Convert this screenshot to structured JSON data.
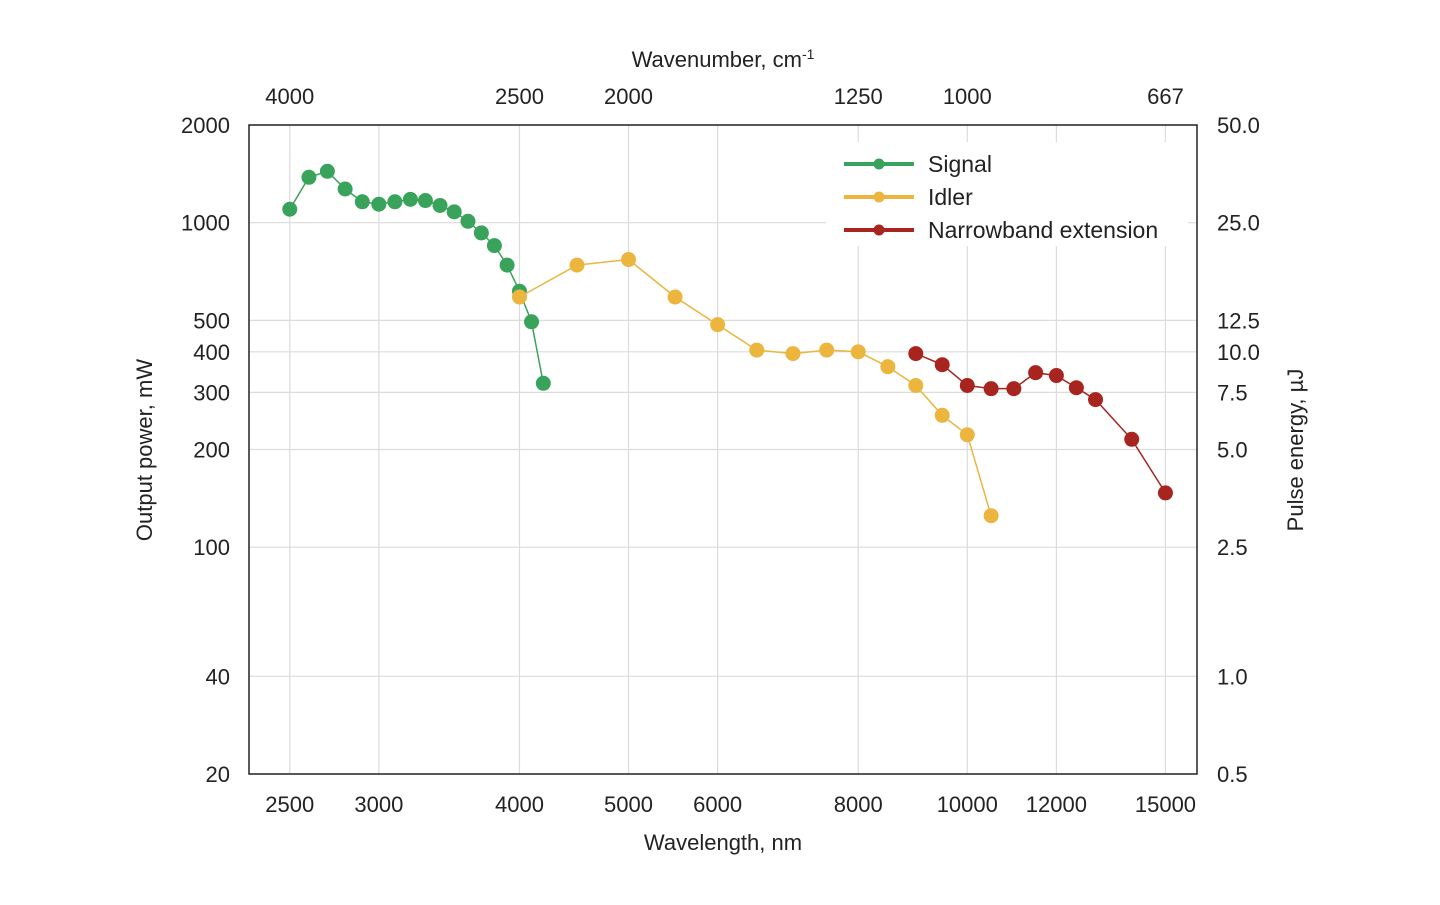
{
  "chart_data": {
    "type": "scatter",
    "xlabel": "Wavelength, nm",
    "ylabel": "Output power, mW",
    "x2label": "Wavenumber, cm",
    "x2label_sup": "-1",
    "y2label": "Pulse energy, µJ",
    "xscale": "log",
    "yscale": "log",
    "xlim": [
      2300,
      16000
    ],
    "ylim": [
      20,
      2000
    ],
    "x_ticks": [
      2500,
      3000,
      4000,
      5000,
      6000,
      8000,
      10000,
      12000,
      15000
    ],
    "x_tick_labels": [
      "2500",
      "3000",
      "4000",
      "5000",
      "6000",
      "8000",
      "10000",
      "12000",
      "15000"
    ],
    "x2_ticks": [
      2500,
      4000,
      5000,
      8000,
      10000,
      15000
    ],
    "x2_tick_labels": [
      "4000",
      "2500",
      "2000",
      "1250",
      "1000",
      "667"
    ],
    "y_ticks": [
      20,
      40,
      100,
      200,
      300,
      400,
      500,
      1000,
      2000
    ],
    "y_tick_labels": [
      "20",
      "40",
      "100",
      "200",
      "300",
      "400",
      "500",
      "1000",
      "2000"
    ],
    "y2_ticks": [
      20,
      40,
      100,
      200,
      300,
      400,
      500,
      1000,
      2000
    ],
    "y2_tick_labels": [
      "0.5",
      "1.0",
      "2.5",
      "5.0",
      "7.5",
      "10.0",
      "12.5",
      "25.0",
      "50.0"
    ],
    "grid": true,
    "legend_position": "top-right",
    "series": [
      {
        "name": "Signal",
        "color": "#3aa35b",
        "line_color": "#3aa35b",
        "line_width": 1.5,
        "points": [
          [
            2500,
            1100
          ],
          [
            2600,
            1380
          ],
          [
            2700,
            1440
          ],
          [
            2800,
            1270
          ],
          [
            2900,
            1160
          ],
          [
            3000,
            1140
          ],
          [
            3100,
            1160
          ],
          [
            3200,
            1180
          ],
          [
            3300,
            1170
          ],
          [
            3400,
            1130
          ],
          [
            3500,
            1080
          ],
          [
            3600,
            1010
          ],
          [
            3700,
            930
          ],
          [
            3800,
            850
          ],
          [
            3900,
            740
          ],
          [
            4000,
            615
          ],
          [
            4100,
            495
          ],
          [
            4200,
            320
          ]
        ]
      },
      {
        "name": "Idler",
        "color": "#ebb53e",
        "line_color": "#ebb53e",
        "line_width": 1.5,
        "points": [
          [
            4000,
            590
          ],
          [
            4500,
            740
          ],
          [
            5000,
            770
          ],
          [
            5500,
            590
          ],
          [
            6000,
            485
          ],
          [
            6500,
            405
          ],
          [
            7000,
            395
          ],
          [
            7500,
            405
          ],
          [
            8000,
            400
          ],
          [
            8500,
            360
          ],
          [
            9000,
            315
          ],
          [
            9500,
            255
          ],
          [
            10000,
            222
          ],
          [
            10500,
            125
          ]
        ]
      },
      {
        "name": "Narrowband extension",
        "color": "#a8241e",
        "line_color": "#a8241e",
        "line_width": 1.5,
        "points": [
          [
            9000,
            395
          ],
          [
            9500,
            365
          ],
          [
            10000,
            315
          ],
          [
            10500,
            308
          ],
          [
            11000,
            308
          ],
          [
            11500,
            345
          ],
          [
            12000,
            338
          ],
          [
            12500,
            310
          ],
          [
            13000,
            285
          ],
          [
            14000,
            215
          ],
          [
            15000,
            147
          ]
        ]
      }
    ],
    "colors": {
      "grid": "#dcdcdc",
      "frame": "#222222",
      "text": "#222222"
    }
  }
}
